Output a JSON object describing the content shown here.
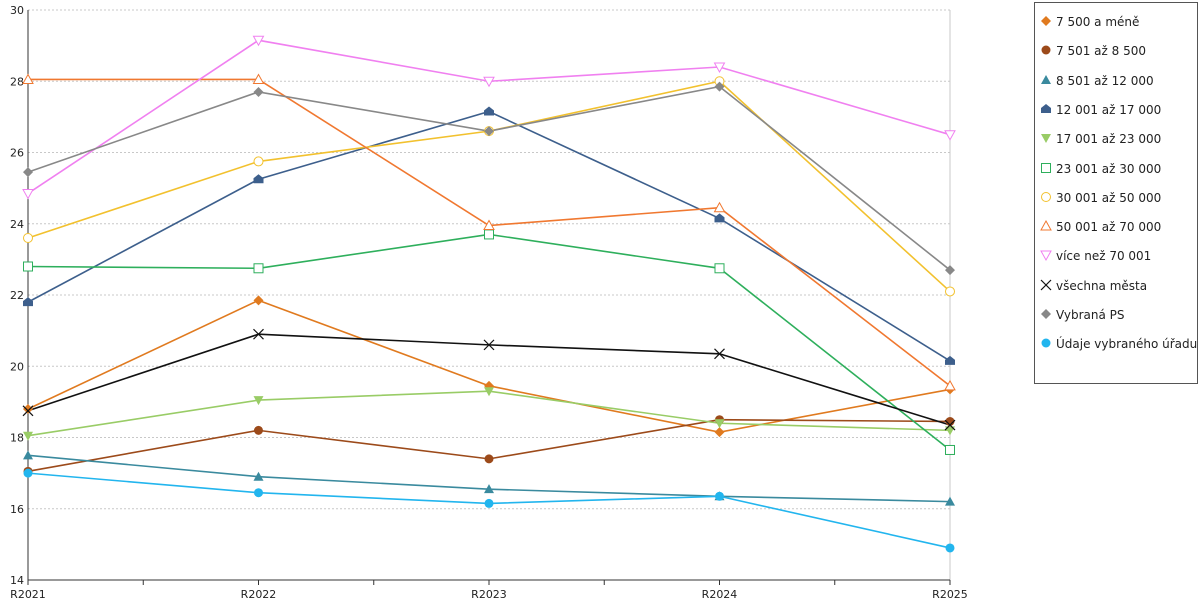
{
  "chart_data": {
    "type": "line",
    "title": "",
    "xlabel": "",
    "ylabel": "",
    "x": [
      "R2021",
      "R2022",
      "R2023",
      "R2024",
      "R2025"
    ],
    "ylim": [
      14,
      30
    ],
    "yticks": [
      14,
      16,
      18,
      20,
      22,
      24,
      26,
      28,
      30
    ],
    "grid": "horizontal dashed",
    "legend_position": "right",
    "series": [
      {
        "name": "7 500 a méně",
        "color": "#e07a1f",
        "marker": "diamond",
        "values": [
          18.8,
          21.85,
          19.45,
          18.15,
          19.35
        ]
      },
      {
        "name": "7 501 až 8 500",
        "color": "#9c4a1a",
        "marker": "circle",
        "values": [
          17.05,
          18.2,
          17.4,
          18.5,
          18.45
        ]
      },
      {
        "name": "8 501 až 12 000",
        "color": "#3a8a9e",
        "marker": "triangle",
        "values": [
          17.5,
          16.9,
          16.55,
          16.35,
          16.2
        ]
      },
      {
        "name": "12 001 až 17 000",
        "color": "#3d5f8c",
        "marker": "house",
        "values": [
          21.8,
          25.25,
          27.15,
          24.15,
          20.15
        ]
      },
      {
        "name": "17 001 až 23 000",
        "color": "#99cc66",
        "marker": "triangle-down",
        "values": [
          18.05,
          19.05,
          19.3,
          18.4,
          18.2
        ]
      },
      {
        "name": "23 001 až 30 000",
        "color": "#2eaf5c",
        "marker": "square-open",
        "values": [
          22.8,
          22.75,
          23.7,
          22.75,
          17.65
        ]
      },
      {
        "name": "30 001 až 50 000",
        "color": "#f2c12e",
        "marker": "circle-open",
        "values": [
          23.6,
          25.75,
          26.6,
          28.0,
          22.1
        ]
      },
      {
        "name": "50 001 až 70 000",
        "color": "#f07830",
        "marker": "triangle-open",
        "values": [
          28.05,
          28.05,
          23.95,
          24.45,
          19.45
        ]
      },
      {
        "name": "více než 70 001",
        "color": "#f080f0",
        "marker": "triangle-down-open",
        "values": [
          24.85,
          29.15,
          28.0,
          28.4,
          26.5
        ]
      },
      {
        "name": "všechna města",
        "color": "#111111",
        "marker": "x",
        "values": [
          18.75,
          20.9,
          20.6,
          20.35,
          18.35
        ]
      },
      {
        "name": "Vybraná PS",
        "color": "#888888",
        "marker": "diamond",
        "values": [
          25.45,
          27.7,
          26.6,
          27.85,
          22.7
        ]
      },
      {
        "name": "Údaje vybraného úřadu",
        "color": "#22b5ee",
        "marker": "circle",
        "values": [
          17.0,
          16.45,
          16.15,
          16.35,
          14.9
        ]
      }
    ]
  }
}
